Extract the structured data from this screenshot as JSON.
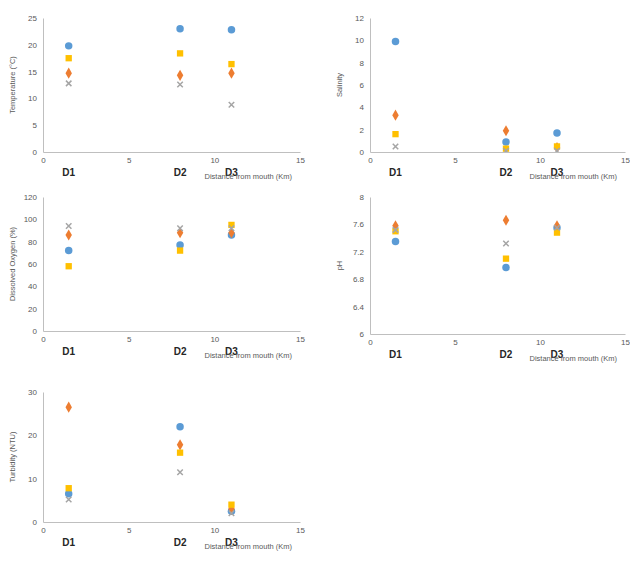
{
  "chart_data": [
    {
      "type": "scatter",
      "y_label": "Temperature (°C)",
      "x_label": "Distance from mouth (Km)",
      "x": [
        1.5,
        8,
        11
      ],
      "xlim": [
        0,
        15
      ],
      "xticks": [
        0,
        5,
        10,
        15
      ],
      "ylim": [
        0,
        25
      ],
      "yticks": [
        0,
        5,
        10,
        15,
        20,
        25
      ],
      "annotations": [
        {
          "text": "D1",
          "x": 1.5
        },
        {
          "text": "D2",
          "x": 8
        },
        {
          "text": "D3",
          "x": 11
        }
      ],
      "series": [
        {
          "color": "#5b9bd5",
          "marker": "circle",
          "values": [
            19.8,
            23,
            22.8
          ]
        },
        {
          "color": "#ed7d31",
          "marker": "diamond",
          "values": [
            14.7,
            14.3,
            14.7
          ]
        },
        {
          "color": "#ffc000",
          "marker": "square",
          "values": [
            17.5,
            18.4,
            16.4
          ]
        },
        {
          "color": "#a5a5a5",
          "marker": "x",
          "values": [
            12.8,
            12.6,
            8.8
          ]
        }
      ]
    },
    {
      "type": "scatter",
      "y_label": "Salinity",
      "x_label": "Distance from mouth (Km)",
      "x": [
        1.5,
        8,
        11
      ],
      "xlim": [
        0,
        15
      ],
      "xticks": [
        0,
        5,
        10,
        15
      ],
      "ylim": [
        0,
        12
      ],
      "yticks": [
        0,
        2,
        4,
        6,
        8,
        10,
        12
      ],
      "annotations": [
        {
          "text": "D1",
          "x": 1.5
        },
        {
          "text": "D2",
          "x": 8
        },
        {
          "text": "D3",
          "x": 11
        }
      ],
      "series": [
        {
          "color": "#5b9bd5",
          "marker": "circle",
          "values": [
            9.9,
            0.9,
            1.7
          ]
        },
        {
          "color": "#ed7d31",
          "marker": "diamond",
          "values": [
            3.3,
            1.9,
            0.4
          ]
        },
        {
          "color": "#ffc000",
          "marker": "square",
          "values": [
            1.6,
            0.3,
            0.5
          ]
        },
        {
          "color": "#a5a5a5",
          "marker": "x",
          "values": [
            0.5,
            0.1,
            0.1
          ]
        }
      ]
    },
    {
      "type": "scatter",
      "y_label": "Dissolved Oxygen (%)",
      "x_label": "Distance from mouth (Km)",
      "x": [
        1.5,
        8,
        11
      ],
      "xlim": [
        0,
        15
      ],
      "xticks": [
        0,
        5,
        10,
        15
      ],
      "ylim": [
        0,
        120
      ],
      "yticks": [
        0,
        20,
        40,
        60,
        80,
        100,
        120
      ],
      "annotations": [
        {
          "text": "D1",
          "x": 1.5
        },
        {
          "text": "D2",
          "x": 8
        },
        {
          "text": "D3",
          "x": 11
        }
      ],
      "series": [
        {
          "color": "#5b9bd5",
          "marker": "circle",
          "values": [
            72,
            77,
            86
          ]
        },
        {
          "color": "#ed7d31",
          "marker": "diamond",
          "values": [
            86,
            88,
            88
          ]
        },
        {
          "color": "#ffc000",
          "marker": "square",
          "values": [
            58,
            72,
            95
          ]
        },
        {
          "color": "#a5a5a5",
          "marker": "x",
          "values": [
            94,
            92,
            92
          ]
        }
      ]
    },
    {
      "type": "scatter",
      "y_label": "pH",
      "x_label": "Distance from mouth (Km)",
      "x": [
        1.5,
        8,
        11
      ],
      "xlim": [
        0,
        15
      ],
      "xticks": [
        0,
        5,
        10,
        15
      ],
      "ylim": [
        6,
        8
      ],
      "yticks": [
        6,
        6.4,
        6.8,
        7.2,
        7.6,
        8
      ],
      "annotations": [
        {
          "text": "D1",
          "x": 1.5
        },
        {
          "text": "D2",
          "x": 8
        },
        {
          "text": "D3",
          "x": 11
        }
      ],
      "series": [
        {
          "color": "#5b9bd5",
          "marker": "circle",
          "values": [
            7.35,
            6.97,
            7.55
          ]
        },
        {
          "color": "#ed7d31",
          "marker": "diamond",
          "values": [
            7.58,
            7.66,
            7.58
          ]
        },
        {
          "color": "#ffc000",
          "marker": "square",
          "values": [
            7.5,
            7.1,
            7.48
          ]
        },
        {
          "color": "#a5a5a5",
          "marker": "x",
          "values": [
            7.52,
            7.32,
            7.55
          ]
        }
      ]
    },
    {
      "type": "scatter",
      "y_label": "Turbidity (NTU)",
      "x_label": "Distance from mouth (Km)",
      "x": [
        1.5,
        8,
        11
      ],
      "xlim": [
        0,
        15
      ],
      "xticks": [
        0,
        5,
        10,
        15
      ],
      "ylim": [
        0,
        30
      ],
      "yticks": [
        0,
        10,
        20,
        30
      ],
      "annotations": [
        {
          "text": "D1",
          "x": 1.5
        },
        {
          "text": "D2",
          "x": 8
        },
        {
          "text": "D3",
          "x": 11
        }
      ],
      "series": [
        {
          "color": "#5b9bd5",
          "marker": "circle",
          "values": [
            6.5,
            22,
            2.5
          ]
        },
        {
          "color": "#ed7d31",
          "marker": "diamond",
          "values": [
            26.5,
            17.8,
            3
          ]
        },
        {
          "color": "#ffc000",
          "marker": "square",
          "values": [
            7.8,
            16,
            4
          ]
        },
        {
          "color": "#a5a5a5",
          "marker": "x",
          "values": [
            5.2,
            11.5,
            2
          ]
        }
      ]
    }
  ]
}
